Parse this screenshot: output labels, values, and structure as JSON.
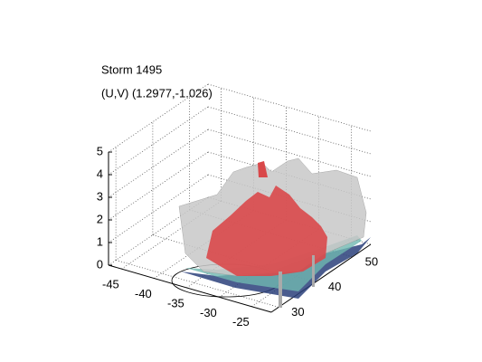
{
  "chart_data": {
    "type": "surface3d",
    "title": "Storm 1495",
    "subtitle": "(U,V) (1.2977,-1.026)",
    "xlim": [
      -47,
      -22
    ],
    "xticks": [
      -45,
      -40,
      -35,
      -30,
      -25
    ],
    "ylim": [
      28,
      55
    ],
    "yticks": [
      30,
      40,
      50
    ],
    "zlim": [
      0,
      5
    ],
    "zticks": [
      0,
      1,
      2,
      3,
      4,
      5
    ],
    "grid": true
  }
}
